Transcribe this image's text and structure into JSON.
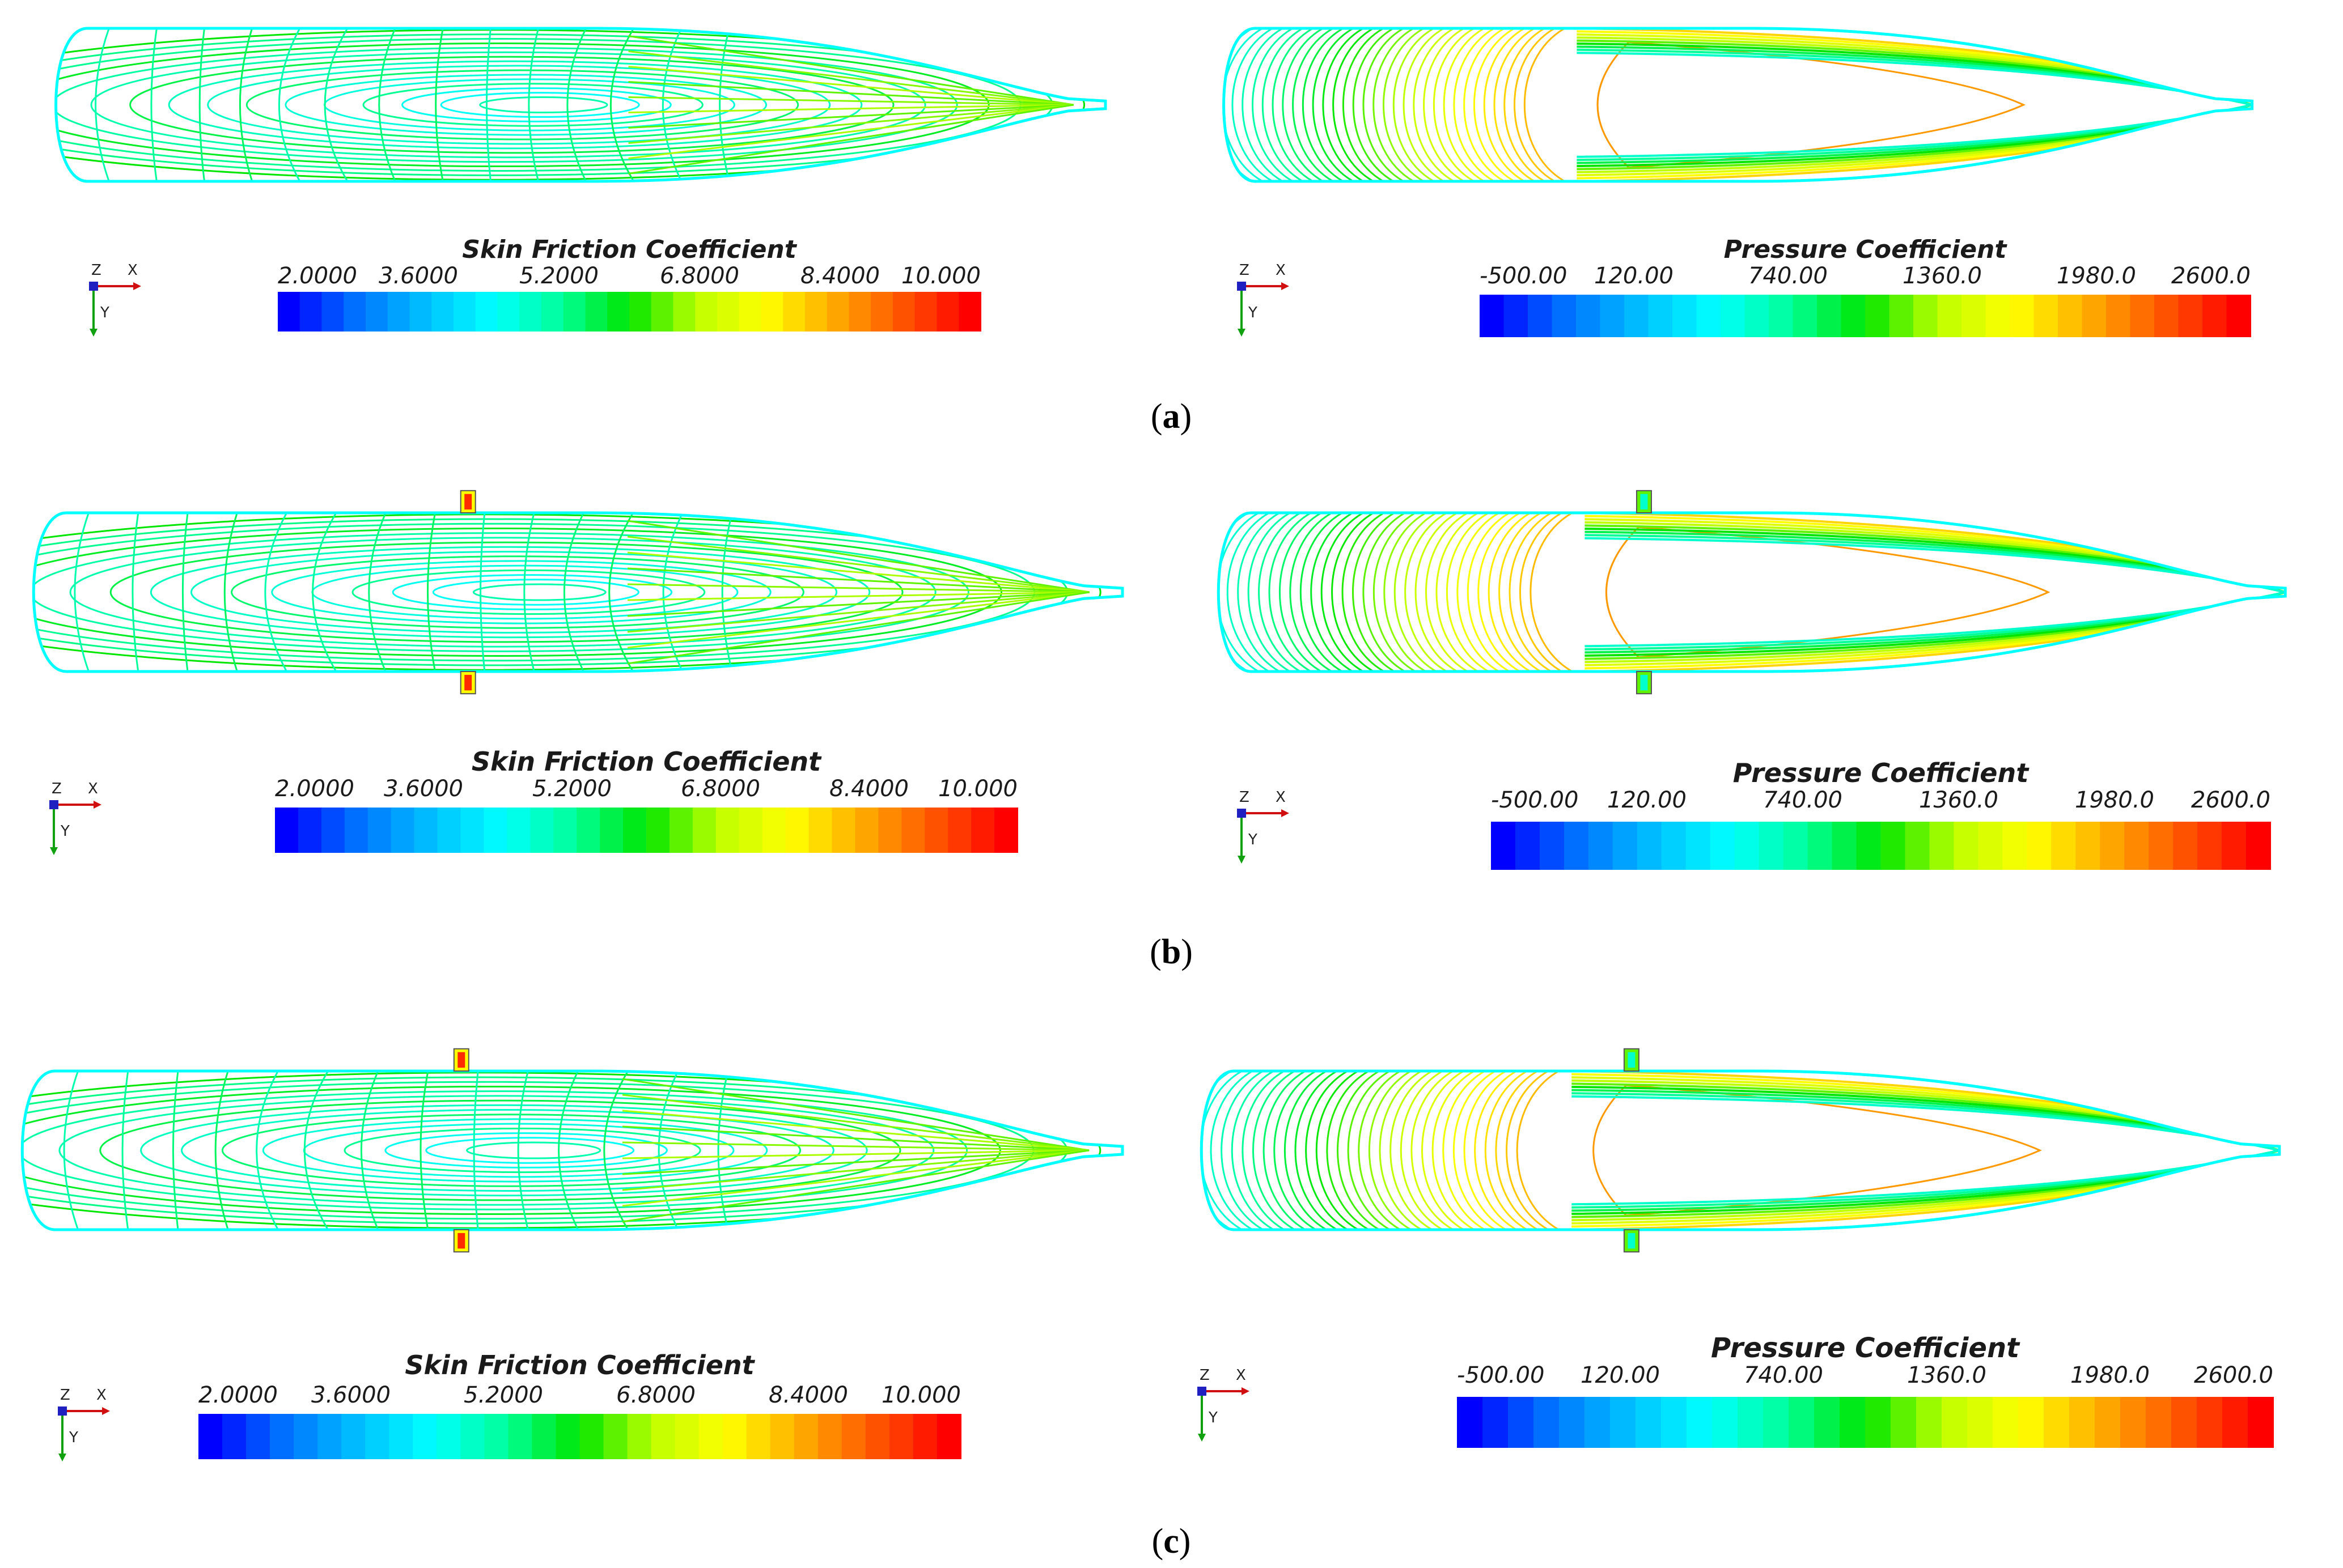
{
  "captions": [
    "(a)",
    "(b)",
    "(c)"
  ],
  "caption_parts": [
    {
      "open": "(",
      "letter": "a",
      "close": ")"
    },
    {
      "open": "(",
      "letter": "b",
      "close": ")"
    },
    {
      "open": "(",
      "letter": "c",
      "close": ")"
    }
  ],
  "axis_triad": {
    "z": "Z",
    "x": "X",
    "y": "Y"
  },
  "colormap": [
    "#0000ff",
    "#0073ff",
    "#00bfff",
    "#00ffff",
    "#00ff99",
    "#00e600",
    "#bfff00",
    "#ffff00",
    "#ffaa00",
    "#ff5500",
    "#ff0000"
  ],
  "skin_friction": {
    "title": "Skin Friction Coefficient",
    "ticks": [
      "2.0000",
      "3.6000",
      "5.2000",
      "6.8000",
      "8.4000",
      "10.000"
    ]
  },
  "pressure": {
    "title": "Pressure Coefficient",
    "ticks": [
      "-500.00",
      "120.00",
      "740.00",
      "1360.0",
      "1980.0",
      "2600.0"
    ]
  },
  "rows": [
    {
      "caption_letter": "a",
      "has_fins": false
    },
    {
      "caption_letter": "b",
      "has_fins": true
    },
    {
      "caption_letter": "c",
      "has_fins": true
    }
  ]
}
